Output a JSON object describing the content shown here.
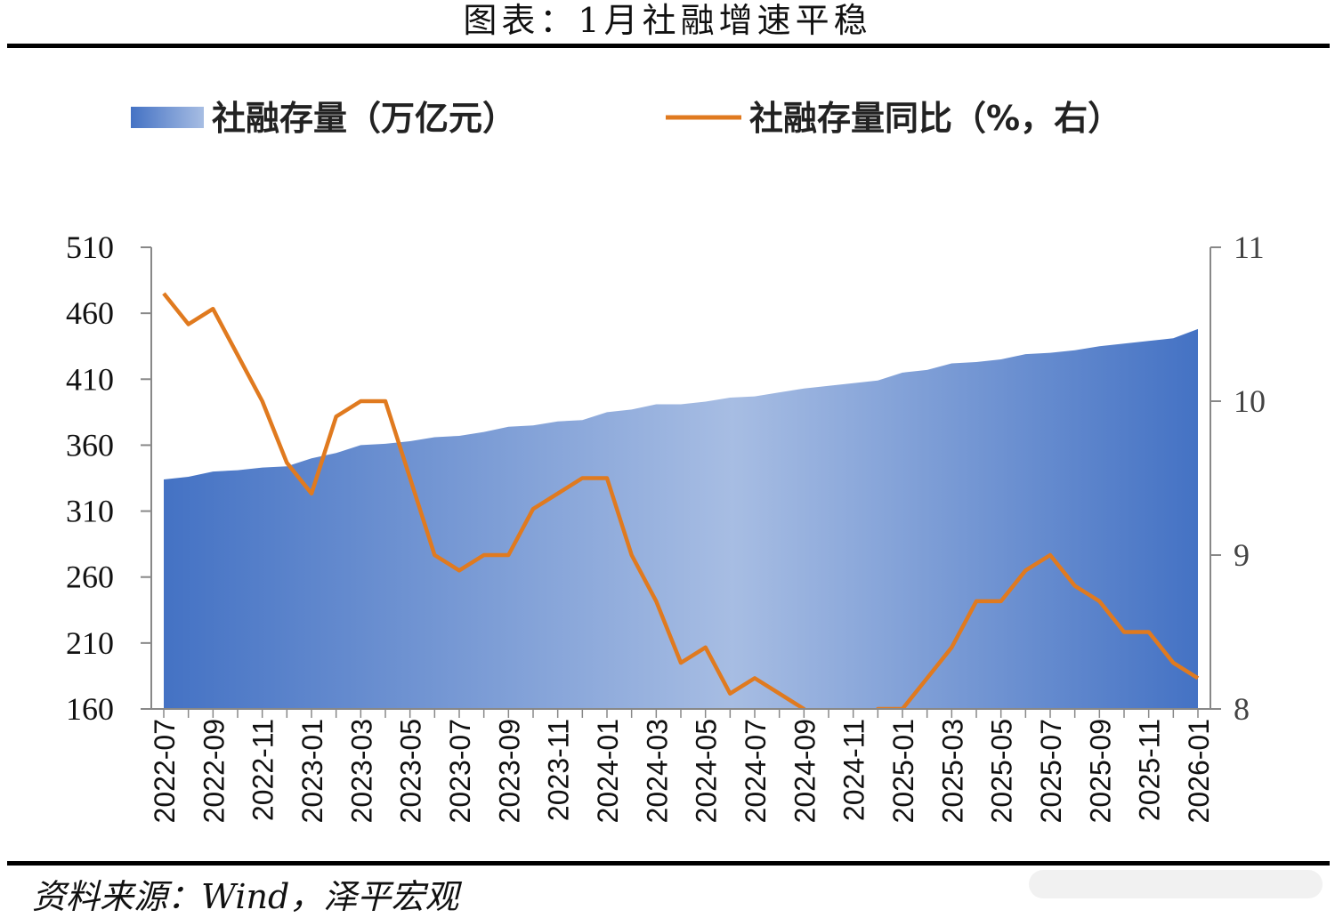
{
  "title": "图表：1月社融增速平稳",
  "source": "资料来源：Wind，泽平宏观",
  "chart_data": {
    "type": "area+line",
    "colors": {
      "area_dark": "#4472c4",
      "area_light": "#a7bde3",
      "line": "#e07a1f"
    },
    "legend": {
      "area": "社融存量（万亿元）",
      "line": "社融存量同比（%，右）"
    },
    "left_axis": {
      "min": 160,
      "max": 510,
      "ticks": [
        "510",
        "460",
        "410",
        "360",
        "310",
        "260",
        "210",
        "160"
      ]
    },
    "right_axis": {
      "min": 8,
      "max": 11,
      "ticks": [
        "11",
        "10",
        "9",
        "8"
      ]
    },
    "x_tick_labels": [
      "2022-07",
      "2022-09",
      "2022-11",
      "2023-01",
      "2023-03",
      "2023-05",
      "2023-07",
      "2023-09",
      "2023-11",
      "2024-01",
      "2024-03",
      "2024-05",
      "2024-07",
      "2024-09",
      "2024-11",
      "2025-01",
      "2025-03",
      "2025-05",
      "2025-07",
      "2025-09",
      "2025-11",
      "2026-01"
    ],
    "x": [
      "2022-07",
      "2022-08",
      "2022-09",
      "2022-10",
      "2022-11",
      "2022-12",
      "2023-01",
      "2023-02",
      "2023-03",
      "2023-04",
      "2023-05",
      "2023-06",
      "2023-07",
      "2023-08",
      "2023-09",
      "2023-10",
      "2023-11",
      "2023-12",
      "2024-01",
      "2024-02",
      "2024-03",
      "2024-04",
      "2024-05",
      "2024-06",
      "2024-07",
      "2024-08",
      "2024-09",
      "2024-10",
      "2024-11",
      "2024-12",
      "2025-01",
      "2025-02",
      "2025-03",
      "2025-04",
      "2025-05",
      "2025-06",
      "2025-07",
      "2025-08",
      "2025-09",
      "2025-10",
      "2025-11",
      "2025-12",
      "2026-01"
    ],
    "series": [
      {
        "name": "社融存量（万亿元）",
        "axis": "left",
        "values": [
          334,
          336,
          340,
          341,
          343,
          344,
          350,
          354,
          360,
          361,
          363,
          366,
          367,
          370,
          374,
          375,
          378,
          379,
          385,
          387,
          391,
          391,
          393,
          396,
          397,
          400,
          403,
          405,
          407,
          409,
          415,
          417,
          422,
          423,
          425,
          429,
          430,
          432,
          435,
          437,
          439,
          441,
          448
        ]
      },
      {
        "name": "社融存量同比（%，右）",
        "axis": "right",
        "values": [
          10.7,
          10.5,
          10.6,
          10.3,
          10.0,
          9.6,
          9.4,
          9.9,
          10.0,
          10.0,
          9.5,
          9.0,
          8.9,
          9.0,
          9.0,
          9.3,
          9.4,
          9.5,
          9.5,
          9.0,
          8.7,
          8.3,
          8.4,
          8.1,
          8.2,
          8.1,
          8.0,
          7.8,
          7.8,
          8.0,
          8.0,
          8.2,
          8.4,
          8.7,
          8.7,
          8.9,
          9.0,
          8.8,
          8.7,
          8.5,
          8.5,
          8.3,
          8.2
        ]
      }
    ]
  }
}
